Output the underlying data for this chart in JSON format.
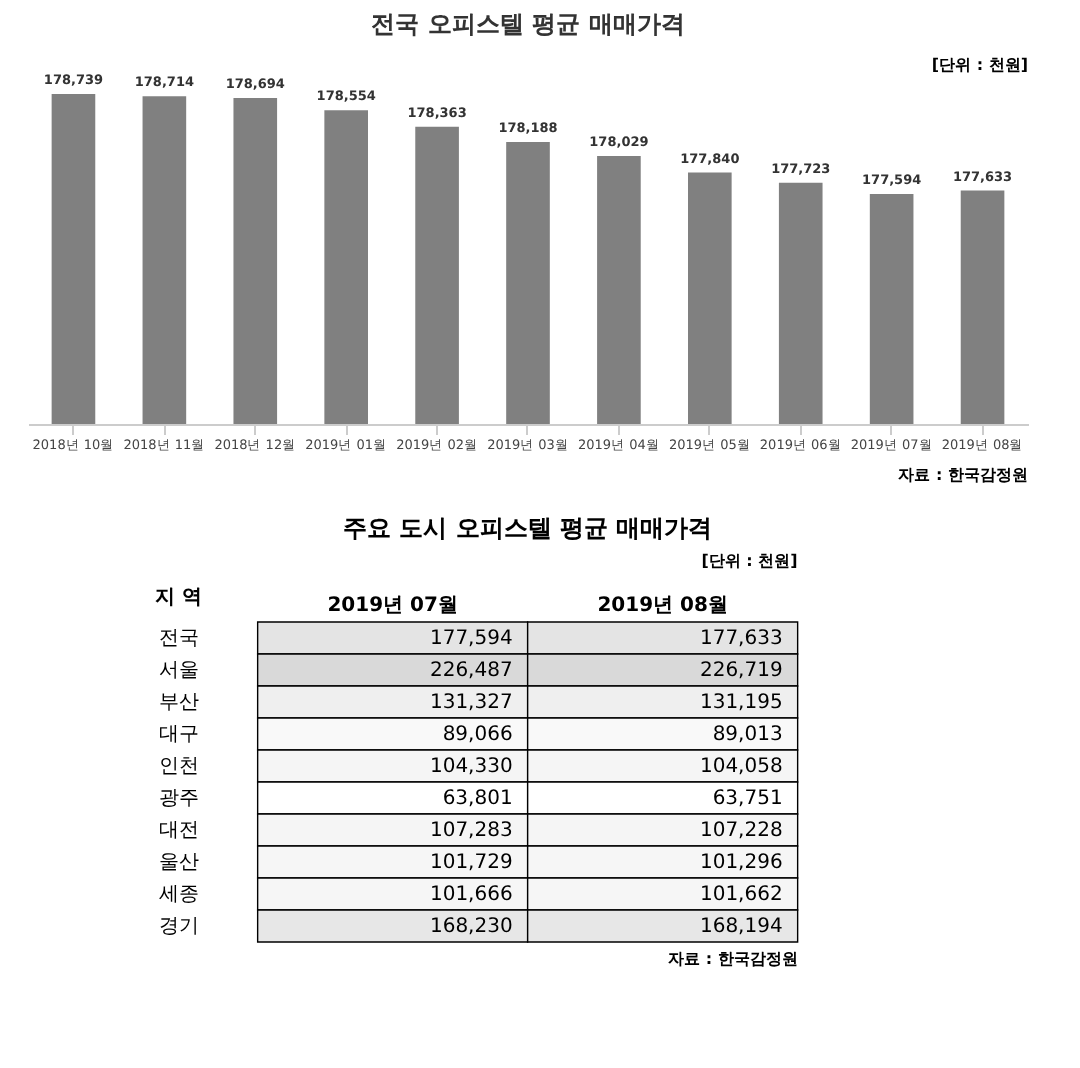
{
  "chart_data": [
    {
      "type": "bar",
      "title": "전국 오피스텔 평균 매매가격",
      "categories": [
        "2018년 10월",
        "2018년 11월",
        "2018년 12월",
        "2019년 01월",
        "2019년 02월",
        "2019년 03월",
        "2019년 04월",
        "2019년 05월",
        "2019년 06월",
        "2019년 07월",
        "2019년 08월"
      ],
      "values": [
        178739,
        178714,
        178694,
        178554,
        178363,
        178188,
        178029,
        177840,
        177723,
        177594,
        177633
      ],
      "value_labels": [
        "178,739",
        "178,714",
        "178,694",
        "178,554",
        "178,363",
        "178,188",
        "178,029",
        "177,840",
        "177,723",
        "177,594",
        "177,633"
      ],
      "color": "#808080",
      "tick_labels": "x",
      "annotations": [
        "[단위 : 천원]",
        "자료 : 한국감정원"
      ]
    },
    {
      "type": "heatmap",
      "title": "주요 도시 오피스텔 평균 매매가격",
      "ylabel": "지 역",
      "categories": [
        "2019년 07월",
        "2019년 08월"
      ],
      "y_categories": [
        "전국",
        "서울",
        "부산",
        "대구",
        "인천",
        "광주",
        "대전",
        "울산",
        "세종",
        "경기"
      ],
      "cells": [
        [
          177594,
          177633
        ],
        [
          226487,
          226719
        ],
        [
          131327,
          131195
        ],
        [
          89066,
          89013
        ],
        [
          104330,
          104058
        ],
        [
          63801,
          63751
        ],
        [
          107283,
          107228
        ],
        [
          101729,
          101296
        ],
        [
          101666,
          101662
        ],
        [
          168230,
          168194
        ]
      ],
      "cell_labels": [
        [
          "177,594",
          "177,633"
        ],
        [
          "226,487",
          "226,719"
        ],
        [
          "131,327",
          "131,195"
        ],
        [
          "89,066",
          "89,013"
        ],
        [
          "104,330",
          "104,058"
        ],
        [
          "63,801",
          "63,751"
        ],
        [
          "107,283",
          "107,228"
        ],
        [
          "101,729",
          "101,296"
        ],
        [
          "101,666",
          "101,662"
        ],
        [
          "168,230",
          "168,194"
        ]
      ],
      "annotations": [
        "[단위 : 천원]",
        "자료 : 한국감정원"
      ]
    }
  ]
}
